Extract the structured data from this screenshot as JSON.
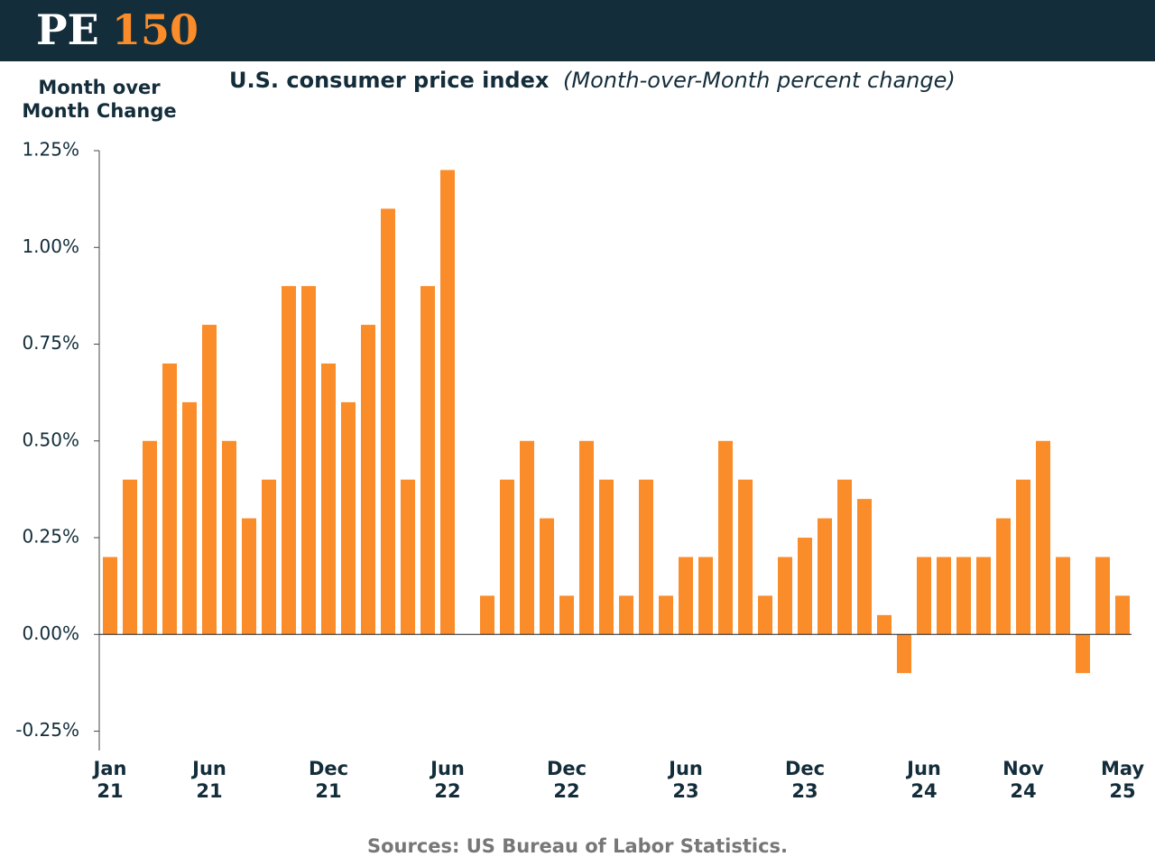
{
  "header": {
    "logo_left": "PE",
    "logo_right": "150"
  },
  "chart_data": {
    "type": "bar",
    "title": "U.S. consumer price index",
    "subtitle": "(Month-over-Month percent change)",
    "y_label": "Month over Month Change",
    "source": "Sources: US Bureau of Labor Statistics.",
    "color": "#fb8c2a",
    "categories": [
      "Jan 21",
      null,
      null,
      null,
      null,
      "Jun 21",
      null,
      null,
      null,
      null,
      null,
      "Dec 21",
      null,
      null,
      null,
      null,
      null,
      "Jun 22",
      null,
      null,
      null,
      null,
      null,
      "Dec 22",
      null,
      null,
      null,
      null,
      null,
      "Jun 23",
      null,
      null,
      null,
      null,
      null,
      "Dec 23",
      null,
      null,
      null,
      null,
      null,
      "Jun 24",
      null,
      null,
      null,
      null,
      "Nov 24",
      null,
      null,
      null,
      null,
      "May 25"
    ],
    "values": [
      0.2,
      0.4,
      0.5,
      0.7,
      0.6,
      0.8,
      0.5,
      0.3,
      0.4,
      0.9,
      0.9,
      0.7,
      0.6,
      0.8,
      1.1,
      0.4,
      0.9,
      1.2,
      0,
      0.1,
      0.4,
      0.5,
      0.3,
      0.1,
      0.5,
      0.4,
      0.1,
      0.4,
      0.1,
      0.2,
      0.2,
      0.5,
      0.4,
      0.1,
      0.2,
      0.25,
      0.3,
      0.4,
      0.35,
      0.05,
      -0.1,
      0.2,
      0.2,
      0.2,
      0.2,
      0.3,
      0.4,
      0.5,
      0.2,
      -0.1,
      0.2,
      0.1
    ],
    "ylim": [
      -0.3,
      1.25
    ],
    "yticks": [
      {
        "value": -0.25,
        "label": "-0.25%"
      },
      {
        "value": 0,
        "label": "0.00%"
      },
      {
        "value": 0.25,
        "label": "0.25%"
      },
      {
        "value": 0.5,
        "label": "0.50%"
      },
      {
        "value": 0.75,
        "label": "0.75%"
      },
      {
        "value": 1,
        "label": "1.00%"
      },
      {
        "value": 1.25,
        "label": "1.25%"
      }
    ]
  }
}
